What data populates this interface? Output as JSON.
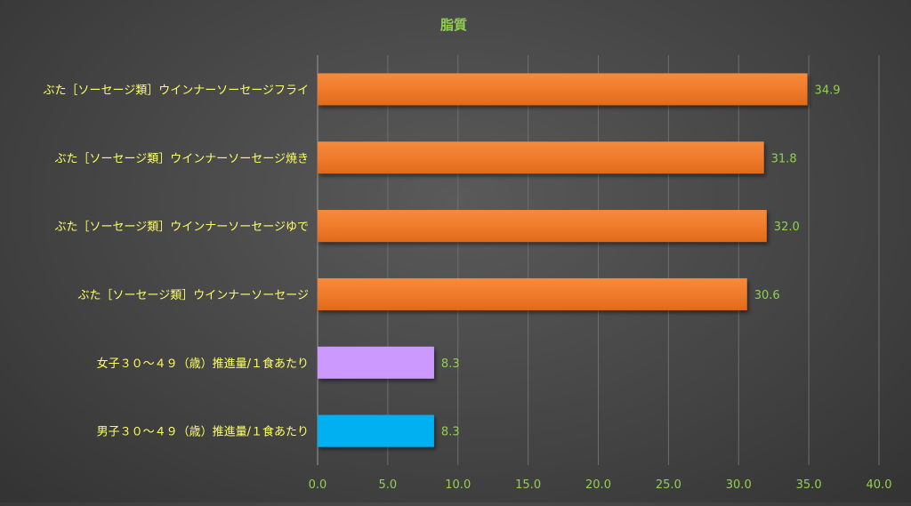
{
  "chart_data": {
    "type": "bar",
    "orientation": "horizontal",
    "title": "脂質",
    "categories": [
      "ぶた［ソーセージ類］ウインナーソーセージフライ",
      "ぶた［ソーセージ類］ウインナーソーセージ焼き",
      "ぶた［ソーセージ類］ウインナーソーセージゆで",
      "ぶた［ソーセージ類］ウインナーソーセージ",
      "女子３０～４９（歳）推進量/１食あたり",
      "男子３０～４９（歳）推進量/１食あたり"
    ],
    "values": [
      34.9,
      31.8,
      32.0,
      30.6,
      8.3,
      8.3
    ],
    "value_labels": [
      "34.9",
      "31.8",
      "32.0",
      "30.6",
      "8.3",
      "8.3"
    ],
    "bar_colors": [
      "#f07b2c",
      "#f07b2c",
      "#f07b2c",
      "#f07b2c",
      "#cc99ff",
      "#00b0f0"
    ],
    "xlim": [
      0,
      40
    ],
    "x_ticks": [
      "0.0",
      "5.0",
      "10.0",
      "15.0",
      "20.0",
      "25.0",
      "30.0",
      "35.0",
      "40.0"
    ],
    "xlabel": "",
    "ylabel": "",
    "grid": true,
    "colors": {
      "title": "#92d050",
      "category_labels": "#ffff66",
      "tick_labels": "#92d050",
      "value_labels": "#92d050",
      "gridlines": "#6e6e6e"
    }
  }
}
